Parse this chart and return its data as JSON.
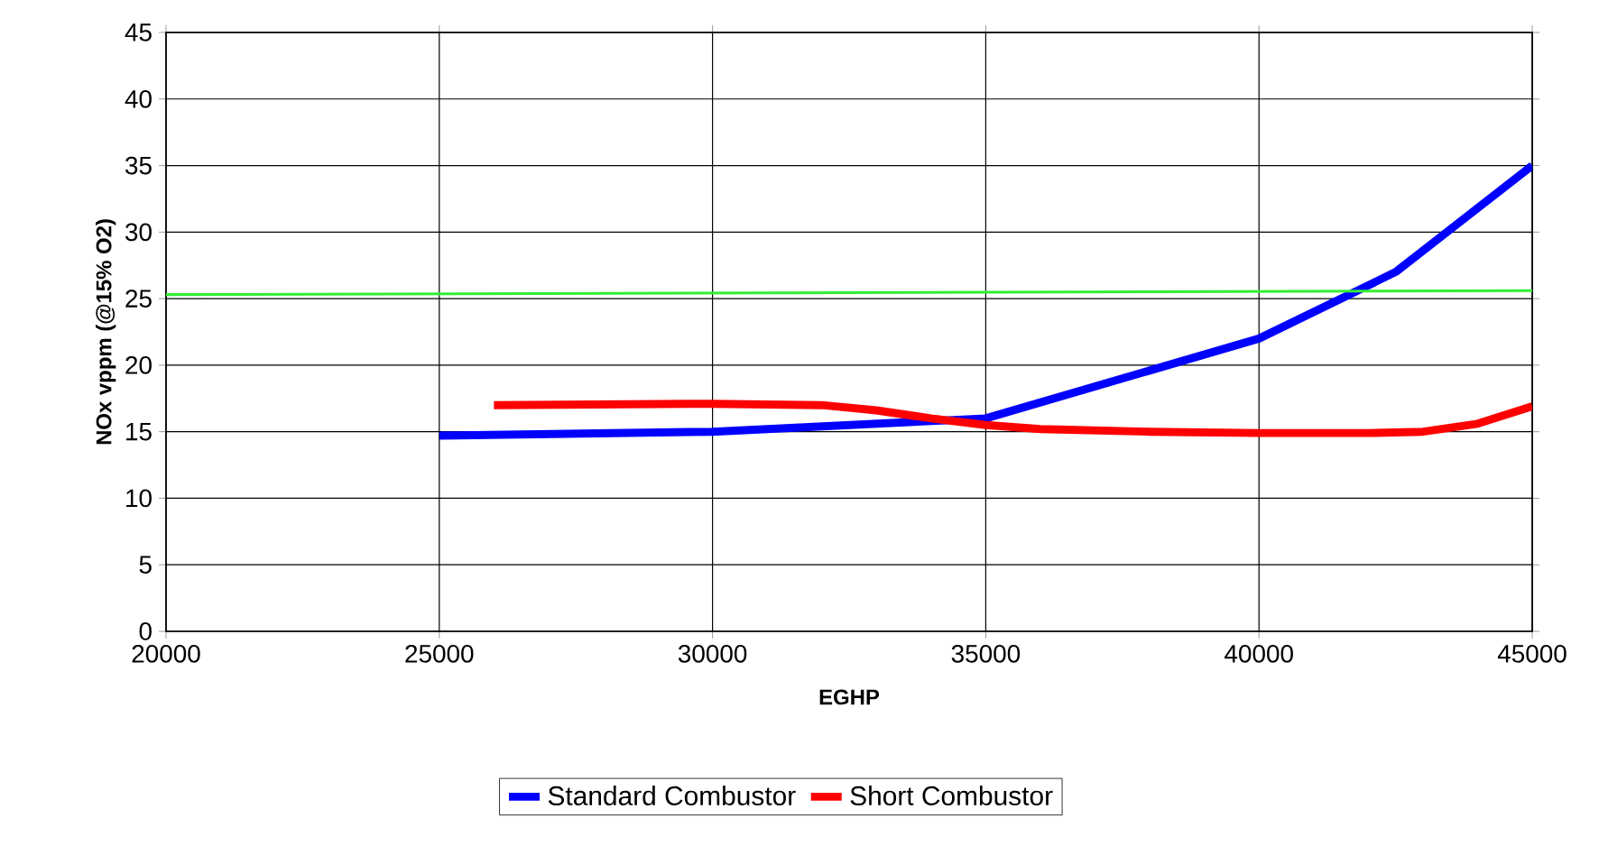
{
  "chart_data": {
    "type": "line",
    "xlabel": "EGHP",
    "ylabel": "NOx vppm (@15% O2)",
    "xlim": [
      20000,
      45000
    ],
    "ylim": [
      0,
      45
    ],
    "xticks": [
      20000,
      25000,
      30000,
      35000,
      40000,
      45000
    ],
    "yticks": [
      0,
      5,
      10,
      15,
      20,
      25,
      30,
      35,
      40,
      45
    ],
    "grid": true,
    "legend": "bottom",
    "marker": "none",
    "line_style": "solid",
    "series": [
      {
        "name": "Standard Combustor",
        "color": "#0000ff",
        "x": [
          25000,
          30000,
          35000,
          40000,
          42500,
          45000
        ],
        "values": [
          14.7,
          15,
          16,
          22,
          27,
          35
        ]
      },
      {
        "name": "Short Combustor",
        "color": "#ff0000",
        "x": [
          26000,
          30000,
          32000,
          33000,
          34000,
          35000,
          36000,
          38000,
          40000,
          42000,
          43000,
          44000,
          45000
        ],
        "values": [
          17,
          17.1,
          17,
          16.6,
          16,
          15.5,
          15.2,
          15,
          14.9,
          14.9,
          15,
          15.6,
          16.9
        ]
      },
      {
        "color": "#33ee33",
        "x": [
          20000,
          45000
        ],
        "values": [
          25.3,
          25.6
        ]
      }
    ]
  }
}
